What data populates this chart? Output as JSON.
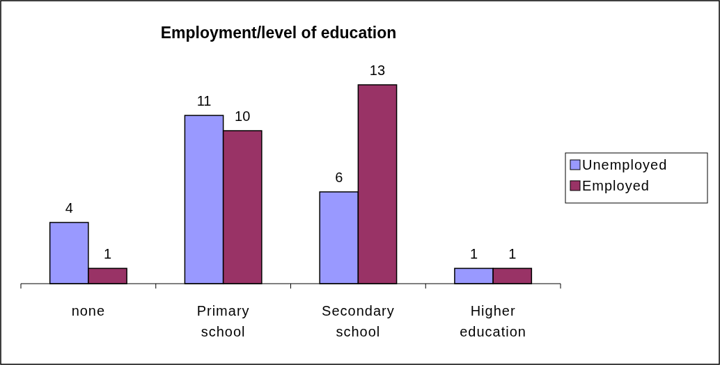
{
  "chart_data": {
    "type": "bar",
    "title": "Employment/level of education",
    "categories": [
      "none",
      "Primary school",
      "Secondary school",
      "Higher education"
    ],
    "series": [
      {
        "name": "Unemployed",
        "color": "#9999ff",
        "values": [
          4,
          11,
          6,
          1
        ]
      },
      {
        "name": "Employed",
        "color": "#993366",
        "values": [
          1,
          10,
          13,
          1
        ]
      }
    ],
    "data_labels": true,
    "legend": "right"
  }
}
